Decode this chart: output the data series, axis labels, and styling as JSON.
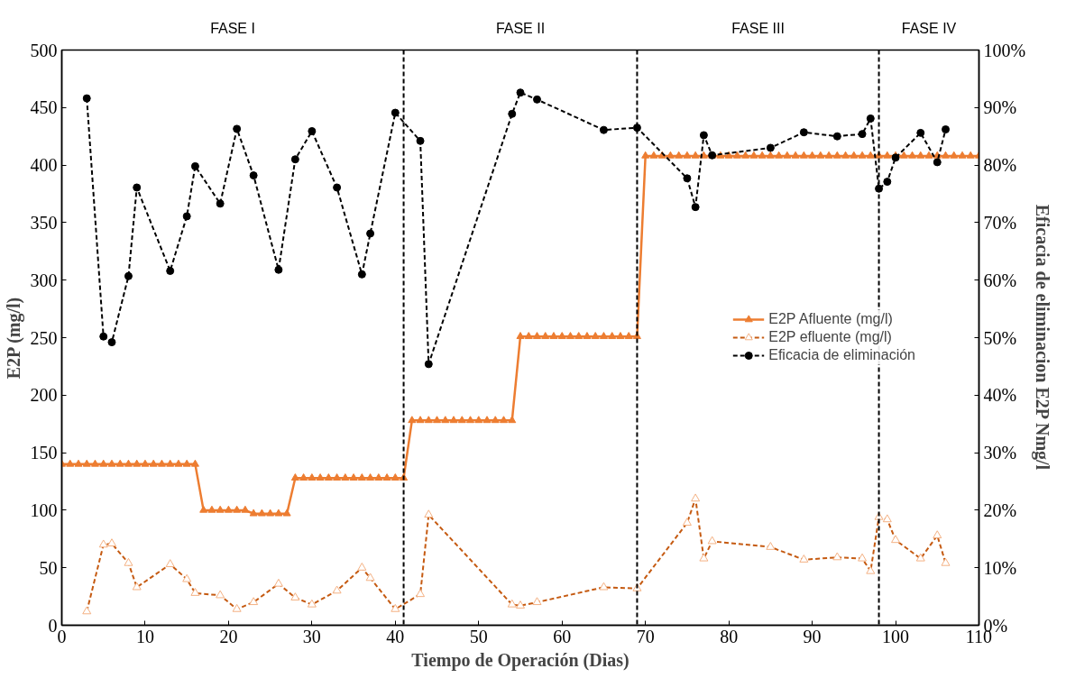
{
  "chart_data": {
    "type": "line",
    "xlabel": "Tiempo de Operación (Dias)",
    "ylabel": "E2P (mg/l)",
    "y2label": "Eficacia de eliminacion E2P Nmg/l",
    "xlim": [
      0,
      110
    ],
    "xticks": [
      0,
      10,
      20,
      30,
      40,
      50,
      60,
      70,
      80,
      90,
      100,
      110
    ],
    "ylim": [
      0,
      500
    ],
    "yticks": [
      0,
      50,
      100,
      150,
      200,
      250,
      300,
      350,
      400,
      450,
      500
    ],
    "y2lim": [
      0,
      100
    ],
    "y2ticks": [
      {
        "value": 0,
        "label": "0%"
      },
      {
        "value": 10,
        "label": "10%"
      },
      {
        "value": 20,
        "label": "20%"
      },
      {
        "value": 30,
        "label": "30%"
      },
      {
        "value": 40,
        "label": "40%"
      },
      {
        "value": 50,
        "label": "50%"
      },
      {
        "value": 60,
        "label": "60%"
      },
      {
        "value": 70,
        "label": "70%"
      },
      {
        "value": 80,
        "label": "80%"
      },
      {
        "value": 90,
        "label": "90%"
      },
      {
        "value": 100,
        "label": "100%"
      }
    ],
    "grid": false,
    "legend": "right",
    "series": [
      {
        "name": "E2P Afluente (mg/l)",
        "color": "#ed7d31",
        "marker": "triangle",
        "line_style": "solid",
        "x": [
          0,
          1,
          2,
          3,
          4,
          5,
          6,
          7,
          8,
          9,
          10,
          11,
          12,
          13,
          14,
          15,
          16,
          17,
          18,
          19,
          20,
          21,
          22,
          23,
          24,
          25,
          26,
          27,
          28,
          29,
          30,
          31,
          32,
          33,
          34,
          35,
          36,
          37,
          38,
          39,
          40,
          41,
          42,
          43,
          44,
          45,
          46,
          47,
          48,
          49,
          50,
          51,
          52,
          53,
          54,
          55,
          56,
          57,
          58,
          59,
          60,
          61,
          62,
          63,
          64,
          65,
          66,
          67,
          68,
          69,
          70,
          71,
          72,
          73,
          74,
          75,
          76,
          77,
          78,
          79,
          80,
          81,
          82,
          83,
          84,
          85,
          86,
          87,
          88,
          89,
          90,
          91,
          92,
          93,
          94,
          95,
          96,
          97,
          98,
          99,
          100,
          101,
          102,
          103,
          104,
          105,
          106,
          107,
          108,
          109,
          110
        ],
        "values": [
          140,
          140,
          140,
          140,
          140,
          140,
          140,
          140,
          140,
          140,
          140,
          140,
          140,
          140,
          140,
          140,
          140,
          100,
          100,
          100,
          100,
          100,
          100,
          97,
          97,
          97,
          97,
          97,
          128,
          128,
          128,
          128,
          128,
          128,
          128,
          128,
          128,
          128,
          128,
          128,
          128,
          128,
          178,
          178,
          178,
          178,
          178,
          178,
          178,
          178,
          178,
          178,
          178,
          178,
          178,
          251,
          251,
          251,
          251,
          251,
          251,
          251,
          251,
          251,
          251,
          251,
          251,
          251,
          251,
          251,
          408,
          408,
          408,
          408,
          408,
          408,
          408,
          408,
          408,
          408,
          408,
          408,
          408,
          408,
          408,
          408,
          408,
          408,
          408,
          408,
          408,
          408,
          408,
          408,
          408,
          408,
          408,
          408,
          408,
          408,
          408,
          408,
          408,
          408,
          408,
          408,
          408,
          408,
          408,
          408,
          408
        ]
      },
      {
        "name": "E2P efluente (mg/l)",
        "color": "#c55a11",
        "marker": "triangle",
        "line_style": "dashed",
        "x": [
          3,
          5,
          6,
          8,
          9,
          13,
          15,
          16,
          19,
          21,
          23,
          26,
          28,
          30,
          33,
          36,
          37,
          40,
          43,
          44,
          54,
          55,
          57,
          65,
          69,
          75,
          76,
          77,
          78,
          85,
          89,
          93,
          96,
          97,
          98,
          99,
          100,
          103,
          105,
          106
        ],
        "values": [
          12,
          70,
          71,
          54,
          33,
          53,
          40,
          28,
          26,
          14,
          20,
          36,
          24,
          18,
          30,
          50,
          41,
          14,
          27,
          96,
          18,
          17,
          20,
          33,
          32,
          89,
          110,
          58,
          73,
          68,
          57,
          59,
          58,
          47,
          94,
          92,
          74,
          58,
          78,
          54
        ]
      },
      {
        "name": "Eficacia de eliminación",
        "color": "#000000",
        "marker": "circle",
        "line_style": "dashed",
        "axis": "y2",
        "x": [
          3,
          5,
          6,
          8,
          9,
          13,
          15,
          16,
          19,
          21,
          23,
          26,
          28,
          30,
          33,
          36,
          37,
          40,
          43,
          44,
          54,
          55,
          57,
          65,
          69,
          75,
          76,
          77,
          78,
          85,
          89,
          93,
          96,
          97,
          98,
          99,
          100,
          103,
          105,
          106
        ],
        "values": [
          91.6,
          50.2,
          49.2,
          60.7,
          76.1,
          61.6,
          71.1,
          79.8,
          73.3,
          86.3,
          78.2,
          61.8,
          81.0,
          85.9,
          76.1,
          61.0,
          68.1,
          89.1,
          84.2,
          45.4,
          88.9,
          92.6,
          91.4,
          86.1,
          86.5,
          77.7,
          72.7,
          85.2,
          81.7,
          83.0,
          85.7,
          85.0,
          85.4,
          88.1,
          75.9,
          77.1,
          81.3,
          85.6,
          80.5,
          86.2
        ]
      }
    ],
    "ref_lines": [
      {
        "axis": "x",
        "value": 41,
        "color": "#000000",
        "line_style": "dashed"
      },
      {
        "axis": "x",
        "value": 69,
        "color": "#000000",
        "line_style": "dashed"
      },
      {
        "axis": "x",
        "value": 98,
        "color": "#000000",
        "line_style": "dashed"
      }
    ],
    "annotations": [
      "FASE I",
      "FASE II",
      "FASE III",
      "FASE IV"
    ]
  }
}
